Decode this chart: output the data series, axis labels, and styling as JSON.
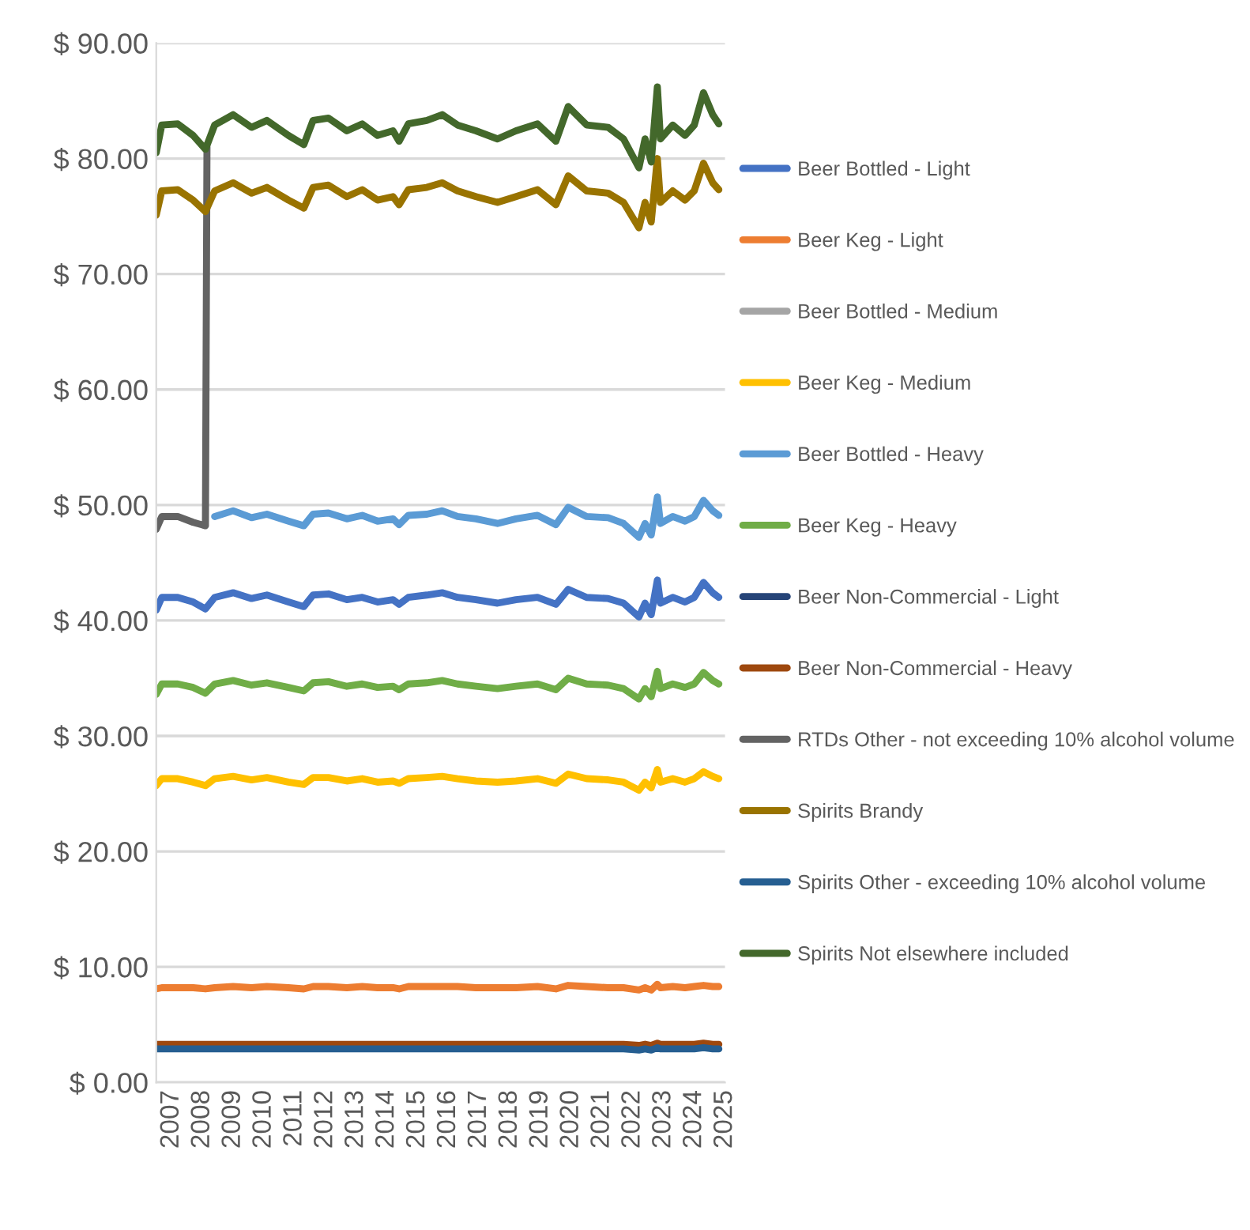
{
  "chart_data": {
    "type": "line",
    "x": [
      2006.5,
      2006.68,
      2007.2,
      2007.7,
      2008.1,
      2008.4,
      2009.0,
      2009.6,
      2010.1,
      2010.8,
      2011.3,
      2011.6,
      2012.1,
      2012.7,
      2013.2,
      2013.7,
      2014.2,
      2014.4,
      2014.7,
      2015.3,
      2015.8,
      2016.3,
      2016.9,
      2017.6,
      2018.2,
      2018.9,
      2019.5,
      2019.9,
      2020.5,
      2021.2,
      2021.7,
      2022.2,
      2022.4,
      2022.6,
      2022.8,
      2022.9,
      2023.3,
      2023.7,
      2024.0,
      2024.3,
      2024.6,
      2024.8
    ],
    "xlim": [
      2006.5,
      2025.0
    ],
    "xticks": [
      2007,
      2008,
      2009,
      2010,
      2011,
      2012,
      2013,
      2014,
      2015,
      2016,
      2017,
      2018,
      2019,
      2020,
      2021,
      2022,
      2023,
      2024,
      2025
    ],
    "ylim": [
      0,
      90
    ],
    "yticks": [
      {
        "value": 0,
        "label": "$ 0.00"
      },
      {
        "value": 10,
        "label": "$ 10.00"
      },
      {
        "value": 20,
        "label": "$ 20.00"
      },
      {
        "value": 30,
        "label": "$ 30.00"
      },
      {
        "value": 40,
        "label": "$ 40.00"
      },
      {
        "value": 50,
        "label": "$ 50.00"
      },
      {
        "value": 60,
        "label": "$ 60.00"
      },
      {
        "value": 70,
        "label": "$ 70.00"
      },
      {
        "value": 80,
        "label": "$ 80.00"
      },
      {
        "value": 90,
        "label": "$ 90.00"
      }
    ],
    "grid": "y",
    "legend": "right",
    "marker": "none",
    "line_style": "solid",
    "series": [
      {
        "name": "Beer Bottled - Light",
        "color": "#4472c4",
        "values": [
          40.9,
          42.0,
          42.0,
          41.6,
          41.0,
          42.0,
          42.4,
          41.9,
          42.2,
          41.6,
          41.2,
          42.2,
          42.3,
          41.8,
          42.0,
          41.6,
          41.8,
          41.4,
          42.0,
          42.2,
          42.4,
          42.0,
          41.8,
          41.5,
          41.8,
          42.0,
          41.4,
          42.7,
          42.0,
          41.9,
          41.5,
          40.3,
          41.5,
          40.5,
          43.5,
          41.5,
          42.0,
          41.6,
          42.0,
          43.3,
          42.4,
          42.0
        ]
      },
      {
        "name": "Beer Keg - Light",
        "color": "#ed7d31",
        "values": [
          8.1,
          8.2,
          8.2,
          8.2,
          8.1,
          8.2,
          8.3,
          8.2,
          8.3,
          8.2,
          8.1,
          8.3,
          8.3,
          8.2,
          8.3,
          8.2,
          8.2,
          8.1,
          8.3,
          8.3,
          8.3,
          8.3,
          8.2,
          8.2,
          8.2,
          8.3,
          8.1,
          8.4,
          8.3,
          8.2,
          8.2,
          8.0,
          8.2,
          8.0,
          8.5,
          8.2,
          8.3,
          8.2,
          8.3,
          8.4,
          8.3,
          8.3
        ]
      },
      {
        "name": "Beer Bottled - Medium",
        "color": "#a5a5a5",
        "values": [
          null,
          null,
          null,
          null,
          null,
          null,
          null,
          null,
          null,
          null,
          null,
          null,
          null,
          null,
          null,
          null,
          null,
          null,
          null,
          null,
          null,
          null,
          null,
          null,
          null,
          null,
          null,
          null,
          null,
          null,
          null,
          null,
          null,
          null,
          null,
          null,
          null,
          null,
          null,
          null,
          null,
          null
        ]
      },
      {
        "name": "Beer Keg - Medium",
        "color": "#ffc000",
        "values": [
          25.7,
          26.3,
          26.3,
          26.0,
          25.7,
          26.3,
          26.5,
          26.2,
          26.4,
          26.0,
          25.8,
          26.4,
          26.4,
          26.1,
          26.3,
          26.0,
          26.1,
          25.9,
          26.3,
          26.4,
          26.5,
          26.3,
          26.1,
          26.0,
          26.1,
          26.3,
          25.9,
          26.7,
          26.3,
          26.2,
          26.0,
          25.3,
          26.0,
          25.5,
          27.1,
          26.0,
          26.3,
          26.0,
          26.3,
          26.9,
          26.5,
          26.3
        ]
      },
      {
        "name": "Beer Bottled - Heavy",
        "color": "#5b9bd5",
        "values": [
          null,
          null,
          null,
          null,
          null,
          49.0,
          49.5,
          48.9,
          49.2,
          48.6,
          48.2,
          49.2,
          49.3,
          48.8,
          49.1,
          48.6,
          48.8,
          48.3,
          49.1,
          49.2,
          49.5,
          49.0,
          48.8,
          48.4,
          48.8,
          49.1,
          48.3,
          49.8,
          49.0,
          48.9,
          48.4,
          47.2,
          48.4,
          47.4,
          50.7,
          48.4,
          49.0,
          48.6,
          49.0,
          50.4,
          49.5,
          49.1
        ]
      },
      {
        "name": "Beer Keg - Heavy",
        "color": "#70ad47",
        "values": [
          33.6,
          34.5,
          34.5,
          34.2,
          33.7,
          34.5,
          34.8,
          34.4,
          34.6,
          34.2,
          33.9,
          34.6,
          34.7,
          34.3,
          34.5,
          34.2,
          34.3,
          34.0,
          34.5,
          34.6,
          34.8,
          34.5,
          34.3,
          34.1,
          34.3,
          34.5,
          34.0,
          35.0,
          34.5,
          34.4,
          34.1,
          33.2,
          34.1,
          33.4,
          35.6,
          34.1,
          34.5,
          34.2,
          34.5,
          35.5,
          34.8,
          34.5
        ]
      },
      {
        "name": "Beer Non-Commercial - Light",
        "color": "#264478",
        "values": [
          null,
          null,
          null,
          null,
          null,
          null,
          null,
          null,
          null,
          null,
          null,
          null,
          null,
          null,
          null,
          null,
          null,
          null,
          null,
          null,
          null,
          null,
          null,
          null,
          null,
          null,
          null,
          null,
          null,
          null,
          null,
          null,
          null,
          null,
          null,
          null,
          null,
          null,
          null,
          null,
          null,
          null
        ]
      },
      {
        "name": "Beer Non-Commercial - Heavy",
        "color": "#9e480e",
        "values": [
          3.3,
          3.3,
          3.3,
          3.3,
          3.3,
          3.3,
          3.3,
          3.3,
          3.3,
          3.3,
          3.3,
          3.3,
          3.3,
          3.3,
          3.3,
          3.3,
          3.3,
          3.3,
          3.3,
          3.3,
          3.3,
          3.3,
          3.3,
          3.3,
          3.3,
          3.3,
          3.3,
          3.3,
          3.3,
          3.3,
          3.3,
          3.2,
          3.3,
          3.2,
          3.4,
          3.3,
          3.3,
          3.3,
          3.3,
          3.4,
          3.3,
          3.3
        ]
      },
      {
        "name": "RTDs Other - not exceeding 10% alcohol volume",
        "color": "#636363",
        "x": [
          2006.5,
          2006.68,
          2007.2,
          2007.7,
          2008.1,
          2008.15
        ],
        "values": [
          47.9,
          49.0,
          49.0,
          48.5,
          48.2,
          81.0
        ]
      },
      {
        "name": "Spirits Brandy",
        "color": "#997300",
        "values": [
          75.1,
          77.2,
          77.3,
          76.4,
          75.4,
          77.2,
          77.9,
          77.0,
          77.5,
          76.4,
          75.7,
          77.5,
          77.7,
          76.7,
          77.3,
          76.4,
          76.7,
          76.0,
          77.3,
          77.5,
          77.9,
          77.2,
          76.7,
          76.2,
          76.7,
          77.3,
          76.0,
          78.5,
          77.2,
          77.0,
          76.2,
          74.0,
          76.2,
          74.5,
          80.0,
          76.2,
          77.2,
          76.4,
          77.2,
          79.6,
          77.9,
          77.3
        ]
      },
      {
        "name": "Spirits Other - exceeding 10% alcohol volume",
        "color": "#255e91",
        "values": [
          2.9,
          2.9,
          2.9,
          2.9,
          2.9,
          2.9,
          2.9,
          2.9,
          2.9,
          2.9,
          2.9,
          2.9,
          2.9,
          2.9,
          2.9,
          2.9,
          2.9,
          2.9,
          2.9,
          2.9,
          2.9,
          2.9,
          2.9,
          2.9,
          2.9,
          2.9,
          2.9,
          2.9,
          2.9,
          2.9,
          2.9,
          2.8,
          2.9,
          2.8,
          3.0,
          2.9,
          2.9,
          2.9,
          2.9,
          3.0,
          2.9,
          2.9
        ]
      },
      {
        "name": "Spirits Not elsewhere included",
        "color": "#43682b",
        "values": [
          80.5,
          82.9,
          83.0,
          82.0,
          80.8,
          82.9,
          83.8,
          82.7,
          83.3,
          82.0,
          81.2,
          83.3,
          83.5,
          82.4,
          83.0,
          82.0,
          82.4,
          81.5,
          83.0,
          83.3,
          83.8,
          82.9,
          82.4,
          81.7,
          82.4,
          83.0,
          81.5,
          84.5,
          82.9,
          82.7,
          81.7,
          79.2,
          81.7,
          79.7,
          86.2,
          81.7,
          82.9,
          82.0,
          82.9,
          85.7,
          83.8,
          83.0
        ]
      }
    ]
  }
}
